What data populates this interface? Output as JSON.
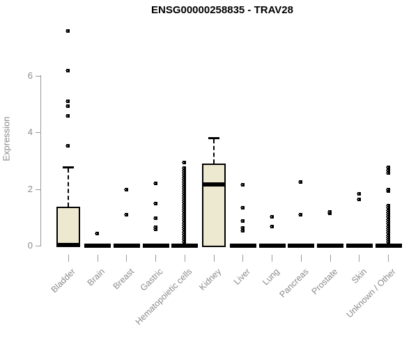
{
  "title": "ENSG00000258835 - TRAV28",
  "colors": {
    "box_fill": "#EDE8D0",
    "box_border": "#000000",
    "axis_line": "#999999",
    "axis_text": "#8a8a8a",
    "background": "#ffffff",
    "title_text": "#000000"
  },
  "chart_data": {
    "type": "boxplot",
    "title": "ENSG00000258835 - TRAV28",
    "xlabel": "",
    "ylabel": "Expression",
    "ylim": [
      0,
      7.8
    ],
    "yticks": [
      0,
      2,
      4,
      6
    ],
    "grid": false,
    "legend": "none",
    "categories": [
      "Bladder",
      "Brain",
      "Breast",
      "Gastric",
      "Hematopoietic cells",
      "Kidney",
      "Liver",
      "Lung",
      "Pancreas",
      "Prostate",
      "Skin",
      "Unknown / Other"
    ],
    "series": [
      {
        "category": "Bladder",
        "q1": 0,
        "median": 0.02,
        "q3": 1.38,
        "whisker_low": 0,
        "whisker_high": 2.78,
        "outliers": [
          3.55,
          4.6,
          4.95,
          5.1,
          6.2,
          7.6
        ]
      },
      {
        "category": "Brain",
        "q1": 0,
        "median": 0,
        "q3": 0,
        "whisker_low": 0,
        "whisker_high": 0,
        "outliers": [
          0.45
        ]
      },
      {
        "category": "Breast",
        "q1": 0,
        "median": 0,
        "q3": 0,
        "whisker_low": 0,
        "whisker_high": 0,
        "outliers": [
          1.1,
          2.0
        ]
      },
      {
        "category": "Gastric",
        "q1": 0,
        "median": 0,
        "q3": 0,
        "whisker_low": 0,
        "whisker_high": 0,
        "outliers": [
          0.6,
          0.66,
          0.98,
          1.5,
          2.2
        ]
      },
      {
        "category": "Hematopoietic cells",
        "q1": 0,
        "median": 0,
        "q3": 0,
        "whisker_low": 0,
        "whisker_high": 0,
        "outliers": [
          0.15,
          0.24,
          0.33,
          0.42,
          0.5,
          0.58,
          0.66,
          0.74,
          0.82,
          0.9,
          0.98,
          1.06,
          1.14,
          1.22,
          1.3,
          1.38,
          1.46,
          1.54,
          1.62,
          1.7,
          1.78,
          1.86,
          1.94,
          2.02,
          2.1,
          2.18,
          2.26,
          2.34,
          2.42,
          2.5,
          2.58,
          2.66,
          2.74,
          2.96
        ]
      },
      {
        "category": "Kidney",
        "q1": 0,
        "median": 2.16,
        "q3": 2.9,
        "whisker_low": 0,
        "whisker_high": 3.8,
        "outliers": []
      },
      {
        "category": "Liver",
        "q1": 0,
        "median": 0,
        "q3": 0,
        "whisker_low": 0,
        "whisker_high": 0,
        "outliers": [
          0.55,
          0.64,
          0.88,
          1.35,
          2.15
        ]
      },
      {
        "category": "Lung",
        "q1": 0,
        "median": 0,
        "q3": 0,
        "whisker_low": 0,
        "whisker_high": 0,
        "outliers": [
          0.7,
          1.03
        ]
      },
      {
        "category": "Pancreas",
        "q1": 0,
        "median": 0,
        "q3": 0,
        "whisker_low": 0,
        "whisker_high": 0,
        "outliers": [
          1.1,
          2.25
        ]
      },
      {
        "category": "Prostate",
        "q1": 0,
        "median": 0,
        "q3": 0,
        "whisker_low": 0,
        "whisker_high": 0,
        "outliers": [
          1.15,
          1.2
        ]
      },
      {
        "category": "Skin",
        "q1": 0,
        "median": 0,
        "q3": 0,
        "whisker_low": 0,
        "whisker_high": 0,
        "outliers": [
          1.65,
          1.85
        ]
      },
      {
        "category": "Unknown / Other",
        "q1": 0,
        "median": 0,
        "q3": 0,
        "whisker_low": 0,
        "whisker_high": 0,
        "outliers": [
          0.15,
          0.22,
          0.3,
          0.38,
          0.46,
          0.54,
          0.62,
          0.7,
          0.78,
          0.86,
          0.94,
          1.02,
          1.1,
          1.18,
          1.26,
          1.34,
          1.43,
          1.95,
          2.0,
          2.58,
          2.68,
          2.78
        ]
      }
    ]
  }
}
